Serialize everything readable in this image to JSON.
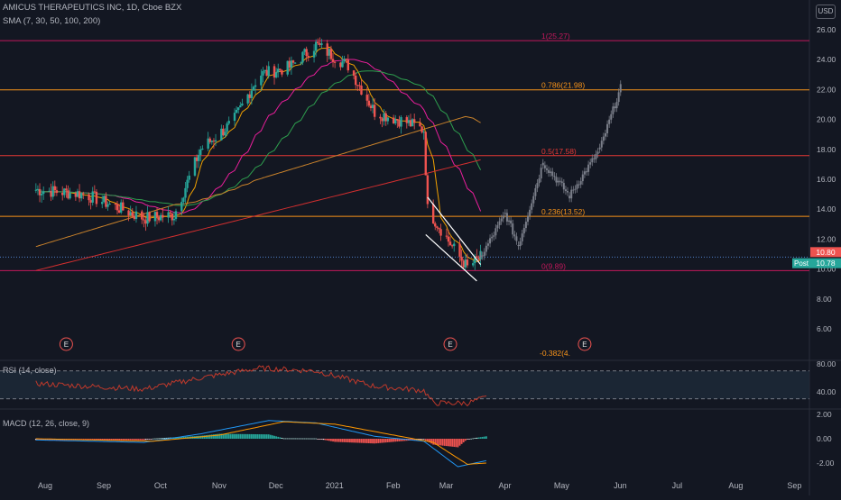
{
  "header": {
    "symbol": "AMICUS THERAPEUTICS INC, 1D, Cboe BZX",
    "indicator": "SMA (7, 30, 50, 100, 200)",
    "currency": "USD"
  },
  "colors": {
    "background": "#131722",
    "up": "#26a69a",
    "down": "#ef5350",
    "fib_orange": "#f7931a",
    "fib_red": "#e53935",
    "fib_magenta": "#c2185b",
    "sma7": "#f0a000",
    "sma30": "#e91e9b",
    "sma50": "#2e9e4e",
    "sma100": "#c9822b",
    "sma200": "#d32f2f",
    "projection": "#7b7f8a",
    "rsi": "#c0392b",
    "macd": "#2196f3",
    "signal": "#ff9800"
  },
  "chart_data": [
    {
      "type": "candlestick",
      "name": "price",
      "x_ticks": [
        "Aug",
        "Sep",
        "Oct",
        "Nov",
        "Dec",
        "2021",
        "Feb",
        "Mar",
        "Apr",
        "May",
        "Jun",
        "Jul",
        "Aug",
        "Sep"
      ],
      "y_ticks": [
        "26.00",
        "24.00",
        "22.00",
        "20.00",
        "18.00",
        "16.00",
        "14.00",
        "12.00",
        "10.00",
        "8.00",
        "6.00"
      ],
      "ylim": [
        4.5,
        26.7
      ],
      "price_key_points": [
        {
          "date": "2020-07-20",
          "close": 15.3
        },
        {
          "date": "2020-08-15",
          "close": 15.0
        },
        {
          "date": "2020-09-15",
          "close": 13.4
        },
        {
          "date": "2020-10-01",
          "close": 13.6
        },
        {
          "date": "2020-10-15",
          "close": 18.0
        },
        {
          "date": "2020-11-01",
          "close": 19.8
        },
        {
          "date": "2020-11-15",
          "close": 23.0
        },
        {
          "date": "2020-12-01",
          "close": 23.5
        },
        {
          "date": "2020-12-15",
          "close": 25.0
        },
        {
          "date": "2021-01-01",
          "close": 23.6
        },
        {
          "date": "2021-01-15",
          "close": 20.5
        },
        {
          "date": "2021-02-01",
          "close": 19.8
        },
        {
          "date": "2021-02-10",
          "close": 19.3
        },
        {
          "date": "2021-02-12",
          "close": 14.0
        },
        {
          "date": "2021-02-25",
          "close": 11.5
        },
        {
          "date": "2021-03-05",
          "close": 10.1
        },
        {
          "date": "2021-03-12",
          "close": 10.78
        }
      ],
      "projection_points": [
        {
          "date": "2021-03-12",
          "value": 10.78
        },
        {
          "date": "2021-03-25",
          "value": 13.7
        },
        {
          "date": "2021-04-01",
          "value": 11.6
        },
        {
          "date": "2021-04-14",
          "value": 17.1
        },
        {
          "date": "2021-04-28",
          "value": 14.9
        },
        {
          "date": "2021-05-14",
          "value": 18.0
        },
        {
          "date": "2021-05-26",
          "value": 22.5
        }
      ],
      "fib_levels": [
        {
          "label": "1(25.27)",
          "value": 25.27,
          "color": "#c2185b"
        },
        {
          "label": "0.786(21.98)",
          "value": 21.98,
          "color": "#f7931a"
        },
        {
          "label": "0.5(17.58)",
          "value": 17.58,
          "color": "#e53935"
        },
        {
          "label": "0.236(13.52)",
          "value": 13.52,
          "color": "#f7931a"
        },
        {
          "label": "0(9.89)",
          "value": 9.89,
          "color": "#c2185b"
        },
        {
          "label": "-0.382(4.",
          "value": 4.0,
          "color": "#f7931a"
        }
      ],
      "price_labels": [
        {
          "text": "10.80",
          "value": 10.8,
          "bg": "#ef5350"
        },
        {
          "text": "Post",
          "value": 10.78,
          "bg": "#26a69a"
        },
        {
          "text": "10.78",
          "value": 10.78,
          "bg": "#26a69a"
        }
      ],
      "earnings_markers": [
        {
          "date": "2020-08-05",
          "label": "E"
        },
        {
          "date": "2020-11-04",
          "label": "E"
        },
        {
          "date": "2021-02-24",
          "label": "E"
        },
        {
          "date": "2021-05-06",
          "label": "E"
        }
      ],
      "channel": [
        {
          "from": {
            "date": "2021-02-12",
            "value": 14.8
          },
          "to": {
            "date": "2021-03-12",
            "value": 10.3
          }
        },
        {
          "from": {
            "date": "2021-02-11",
            "value": 12.3
          },
          "to": {
            "date": "2021-03-10",
            "value": 9.2
          }
        }
      ]
    },
    {
      "type": "line",
      "name": "RSI (14, close)",
      "label": "RSI (14, close)",
      "y_ticks": [
        "80.00",
        "40.00"
      ],
      "upper_band": 70,
      "lower_band": 30,
      "points": [
        {
          "date": "2020-07-20",
          "value": 52
        },
        {
          "date": "2020-09-15",
          "value": 44
        },
        {
          "date": "2020-10-15",
          "value": 60
        },
        {
          "date": "2020-11-15",
          "value": 74
        },
        {
          "date": "2020-12-15",
          "value": 70
        },
        {
          "date": "2021-01-15",
          "value": 48
        },
        {
          "date": "2021-02-10",
          "value": 42
        },
        {
          "date": "2021-02-15",
          "value": 24
        },
        {
          "date": "2021-03-05",
          "value": 24
        },
        {
          "date": "2021-03-15",
          "value": 32
        }
      ]
    },
    {
      "type": "line",
      "name": "MACD (12, 26, close, 9)",
      "label": "MACD (12, 26, close, 9)",
      "y_ticks": [
        "2.00",
        "0.00",
        "-2.00"
      ],
      "macd_points": [
        {
          "date": "2020-07-20",
          "value": -0.1
        },
        {
          "date": "2020-09-15",
          "value": -0.3
        },
        {
          "date": "2020-10-15",
          "value": 0.4
        },
        {
          "date": "2020-11-20",
          "value": 1.5
        },
        {
          "date": "2020-12-15",
          "value": 1.3
        },
        {
          "date": "2021-01-15",
          "value": 0.2
        },
        {
          "date": "2021-02-10",
          "value": -0.2
        },
        {
          "date": "2021-02-28",
          "value": -2.3
        },
        {
          "date": "2021-03-15",
          "value": -1.8
        }
      ],
      "signal_points": [
        {
          "date": "2020-07-20",
          "value": 0.0
        },
        {
          "date": "2020-09-20",
          "value": -0.2
        },
        {
          "date": "2020-10-25",
          "value": 0.3
        },
        {
          "date": "2020-11-28",
          "value": 1.4
        },
        {
          "date": "2020-12-25",
          "value": 1.2
        },
        {
          "date": "2021-01-25",
          "value": 0.3
        },
        {
          "date": "2021-02-15",
          "value": -0.3
        },
        {
          "date": "2021-03-05",
          "value": -2.1
        },
        {
          "date": "2021-03-15",
          "value": -2.0
        }
      ]
    }
  ]
}
